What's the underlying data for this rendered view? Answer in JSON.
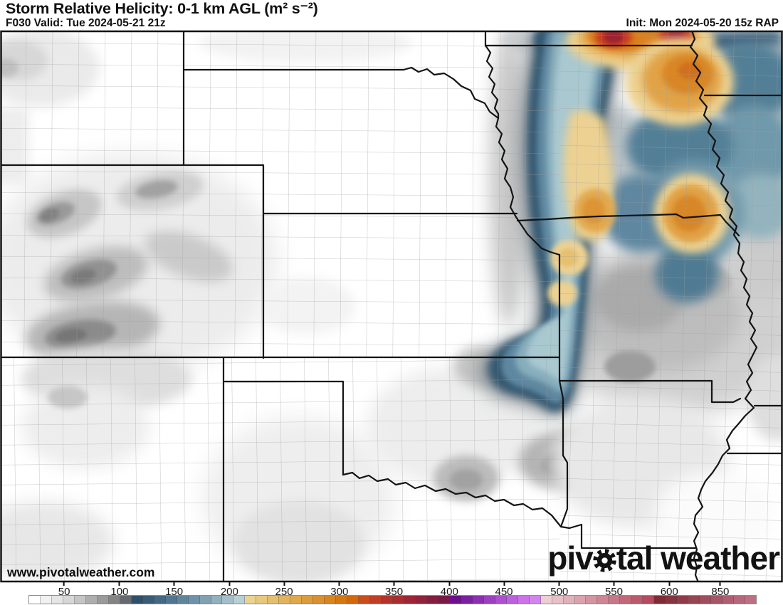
{
  "header": {
    "title": "Storm Relative Helicity: 0-1 km AGL (m² s⁻²)",
    "run_info": "F030 Valid: Tue 2024-05-21 21z",
    "init_info": "Init: Mon 2024-05-20 15z RAP"
  },
  "branding": {
    "url": "www.pivotalweather.com",
    "watermark_prefix": "piv",
    "watermark_suffix": "tal weather"
  },
  "colorbar": {
    "units": "m² s⁻²",
    "labels": [
      {
        "value": "50",
        "left_pct": 4.9
      },
      {
        "value": "100",
        "left_pct": 12.5
      },
      {
        "value": "150",
        "left_pct": 20.0
      },
      {
        "value": "200",
        "left_pct": 27.6
      },
      {
        "value": "250",
        "left_pct": 35.1
      },
      {
        "value": "300",
        "left_pct": 42.7
      },
      {
        "value": "350",
        "left_pct": 50.2
      },
      {
        "value": "400",
        "left_pct": 57.8
      },
      {
        "value": "450",
        "left_pct": 65.3
      },
      {
        "value": "500",
        "left_pct": 72.9
      },
      {
        "value": "550",
        "left_pct": 80.4
      },
      {
        "value": "600",
        "left_pct": 88.0
      },
      {
        "value": "850",
        "left_pct": 95.0
      }
    ],
    "segment_colors": [
      "#ffffff",
      "#f1f1f1",
      "#e5e5e5",
      "#d7d7d7",
      "#c5c5c5",
      "#aeaeae",
      "#9a9a9a",
      "#848484",
      "#666a6e",
      "#30506a",
      "#3a5c76",
      "#456982",
      "#52768f",
      "#60849c",
      "#7092a8",
      "#81a1b3",
      "#93b0bf",
      "#a5bfca",
      "#b8cfd6",
      "#ead290",
      "#e7c97e",
      "#e4bf6c",
      "#e1b35b",
      "#dfa84b",
      "#dc9c3c",
      "#da902e",
      "#d88420",
      "#d57713",
      "#d3680c",
      "#cb4c1d",
      "#c03e25",
      "#b4332b",
      "#a92c31",
      "#9d2636",
      "#92213b",
      "#861d40",
      "#7a1945",
      "#6c1090",
      "#7c1fa0",
      "#8c2fb0",
      "#9c3fc0",
      "#ac4fd0",
      "#bc60df",
      "#cc73e9",
      "#d285ee",
      "#eeced4",
      "#e8c0c7",
      "#e1b1ba",
      "#dba3ad",
      "#d494a0",
      "#ce8693",
      "#c77786",
      "#c16879",
      "#ba5a6c",
      "#b44b5f",
      "#7e2c35",
      "#86343e",
      "#8e3d48",
      "#964552",
      "#9e4e5c",
      "#a65666",
      "#ae5f70",
      "#b6677a",
      "#bd7084"
    ]
  }
}
